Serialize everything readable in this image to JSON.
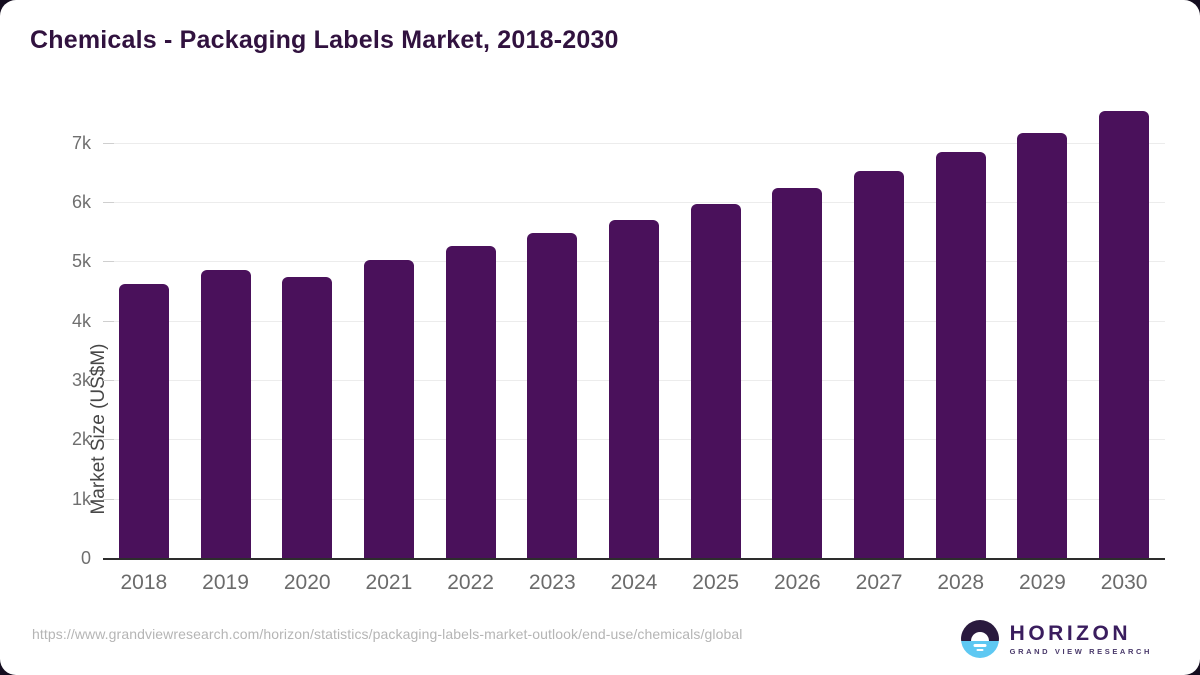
{
  "card": {
    "title": "Chemicals - Packaging Labels Market, 2018-2030"
  },
  "chart_data": {
    "type": "bar",
    "title": "Chemicals - Packaging Labels Market, 2018-2030",
    "categories": [
      "2018",
      "2019",
      "2020",
      "2021",
      "2022",
      "2023",
      "2024",
      "2025",
      "2026",
      "2027",
      "2028",
      "2029",
      "2030"
    ],
    "values": [
      4640,
      4870,
      4760,
      5040,
      5270,
      5490,
      5720,
      5980,
      6250,
      6540,
      6850,
      7170,
      7550
    ],
    "xlabel": "",
    "ylabel": "Market Size (US$M)",
    "y_ticks": [
      "0",
      "1k",
      "2k",
      "3k",
      "4k",
      "5k",
      "6k",
      "7k"
    ],
    "ylim": [
      0,
      7750
    ],
    "grid": "horizontal",
    "legend": "none",
    "bar_color": "#4a115b"
  },
  "footer": {
    "source_url": "https://www.grandviewresearch.com/horizon/statistics/packaging-labels-market-outlook/end-use/chemicals/global",
    "logo": {
      "name": "HORIZON",
      "subtitle": "GRAND VIEW RESEARCH",
      "icon": "sunrise-horizon-icon",
      "icon_top_color": "#2a1a3e",
      "icon_bottom_color": "#5ec8f2"
    }
  },
  "colors": {
    "background": "#140d1f",
    "card": "#ffffff",
    "title_text": "#31123f",
    "bar": "#4a115b",
    "gridline": "#ececec",
    "axis_line": "#2d2d2d",
    "tick_text": "#6f6f6f",
    "source_text": "#b5b5b5"
  }
}
